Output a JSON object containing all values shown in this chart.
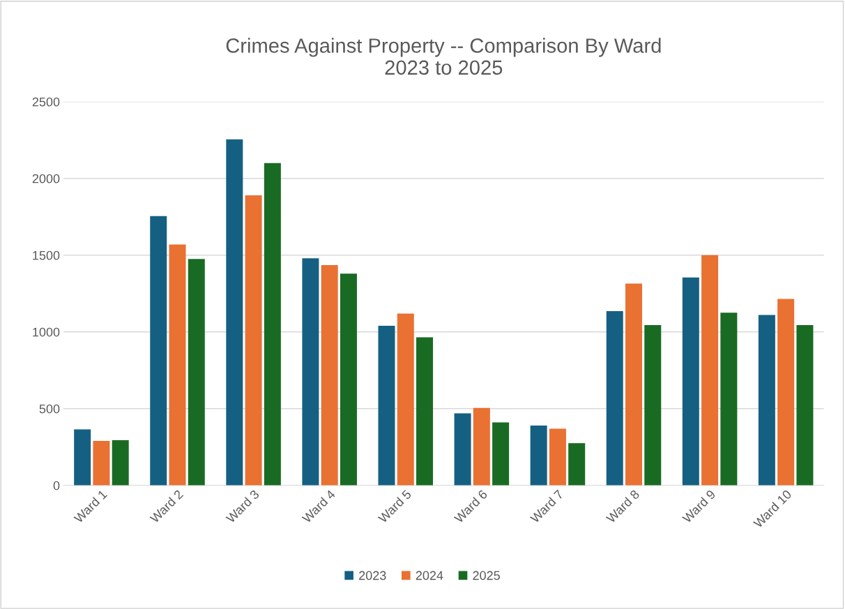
{
  "chart_data": {
    "type": "bar",
    "title": "Crimes Against Property -- Comparison By Ward\n2023 to 2025",
    "categories": [
      "Ward 1",
      "Ward 2",
      "Ward 3",
      "Ward 4",
      "Ward 5",
      "Ward 6",
      "Ward 7",
      "Ward 8",
      "Ward 9",
      "Ward 10"
    ],
    "series": [
      {
        "name": "2023",
        "color": "#156082",
        "values": [
          365,
          1755,
          2255,
          1480,
          1040,
          470,
          390,
          1135,
          1355,
          1110
        ]
      },
      {
        "name": "2024",
        "color": "#e97132",
        "values": [
          290,
          1570,
          1890,
          1435,
          1120,
          505,
          370,
          1315,
          1500,
          1215
        ]
      },
      {
        "name": "2025",
        "color": "#196b24",
        "values": [
          295,
          1475,
          2100,
          1380,
          965,
          410,
          275,
          1045,
          1125,
          1045
        ]
      }
    ],
    "ylim": [
      0,
      2500
    ],
    "yticks": [
      0,
      500,
      1000,
      1500,
      2000,
      2500
    ],
    "grid": "y",
    "legend": "bottom"
  }
}
